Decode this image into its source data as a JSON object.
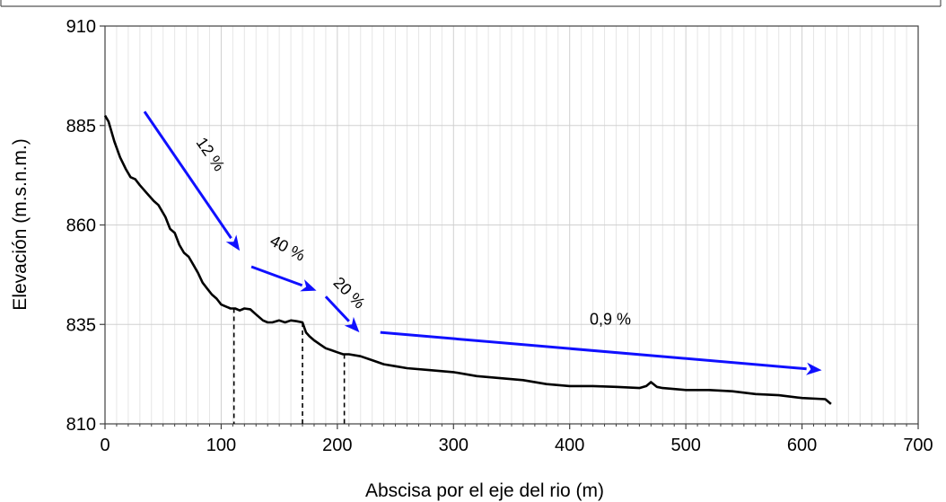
{
  "chart_data": {
    "type": "line",
    "title": "",
    "xlabel": "Abscisa por el eje del rio (m)",
    "ylabel": "Elevación (m.s.n.m.)",
    "xlim": [
      0,
      700
    ],
    "ylim": [
      810,
      910
    ],
    "x_ticks": [
      0,
      100,
      200,
      300,
      400,
      500,
      600,
      700
    ],
    "y_ticks": [
      810,
      835,
      860,
      885,
      910
    ],
    "x_tick_labels": [
      "0",
      "100",
      "200",
      "300",
      "400",
      "500",
      "600",
      "700"
    ],
    "y_tick_labels": [
      "810",
      "835",
      "860",
      "885",
      "910"
    ],
    "x_minor_step": 10,
    "grid": "on",
    "legend": "none",
    "series": [
      {
        "color": "#000000",
        "x": [
          0,
          3,
          8,
          13,
          18,
          22,
          26,
          30,
          36,
          42,
          46,
          52,
          56,
          60,
          64,
          68,
          72,
          76,
          80,
          84,
          88,
          92,
          96,
          100,
          104,
          108,
          112,
          116,
          120,
          125,
          130,
          136,
          140,
          144,
          150,
          155,
          160,
          165,
          170,
          173,
          176,
          180,
          185,
          190,
          195,
          200,
          205,
          210,
          220,
          230,
          240,
          250,
          260,
          280,
          300,
          320,
          340,
          360,
          380,
          400,
          420,
          440,
          460,
          466,
          470,
          475,
          480,
          500,
          520,
          540,
          560,
          580,
          600,
          620,
          625
        ],
        "y": [
          887.5,
          886,
          881,
          877,
          874,
          872,
          871.5,
          870,
          868,
          866,
          865,
          862,
          859,
          858,
          855,
          853,
          852,
          850,
          848,
          845.5,
          844,
          842.5,
          841.5,
          840,
          839.5,
          839,
          839,
          838.5,
          839,
          838.8,
          837.5,
          836,
          835.5,
          835.5,
          836,
          835.5,
          836,
          835.8,
          835.5,
          833,
          832,
          831,
          830,
          829,
          828.5,
          828,
          827.5,
          827.5,
          827,
          826,
          825,
          824.5,
          824,
          823.5,
          823,
          822,
          821.5,
          821,
          820,
          819.5,
          819.5,
          819.3,
          819,
          819.5,
          820.5,
          819.3,
          819,
          818.5,
          818.5,
          818.2,
          817.5,
          817.2,
          816.5,
          816.2,
          815
        ]
      }
    ],
    "dashed_markers": [
      {
        "x": 111,
        "y_top": 839,
        "y_bottom": 810
      },
      {
        "x": 170,
        "y_top": 835.5,
        "y_bottom": 810
      },
      {
        "x": 206,
        "y_top": 827.5,
        "y_bottom": 810
      }
    ],
    "arrows": [
      {
        "color": "#1010ff",
        "from": [
          34,
          888.5
        ],
        "to": [
          116,
          853.5
        ]
      },
      {
        "color": "#1010ff",
        "from": [
          126,
          849.5
        ],
        "to": [
          182,
          843.5
        ]
      },
      {
        "color": "#1010ff",
        "from": [
          190,
          842
        ],
        "to": [
          219,
          833
        ]
      },
      {
        "color": "#1010ff",
        "from": [
          237,
          833
        ],
        "to": [
          617,
          823.5
        ]
      }
    ],
    "annotations": [
      {
        "text": "12 %",
        "x": 87,
        "y": 877,
        "rotate": 55
      },
      {
        "text": "40 %",
        "x": 155,
        "y": 853,
        "rotate": 28
      },
      {
        "text": "20 %",
        "x": 207,
        "y": 842,
        "rotate": 45
      },
      {
        "text": "0,9 %",
        "x": 435,
        "y": 835,
        "rotate": 0
      }
    ]
  }
}
